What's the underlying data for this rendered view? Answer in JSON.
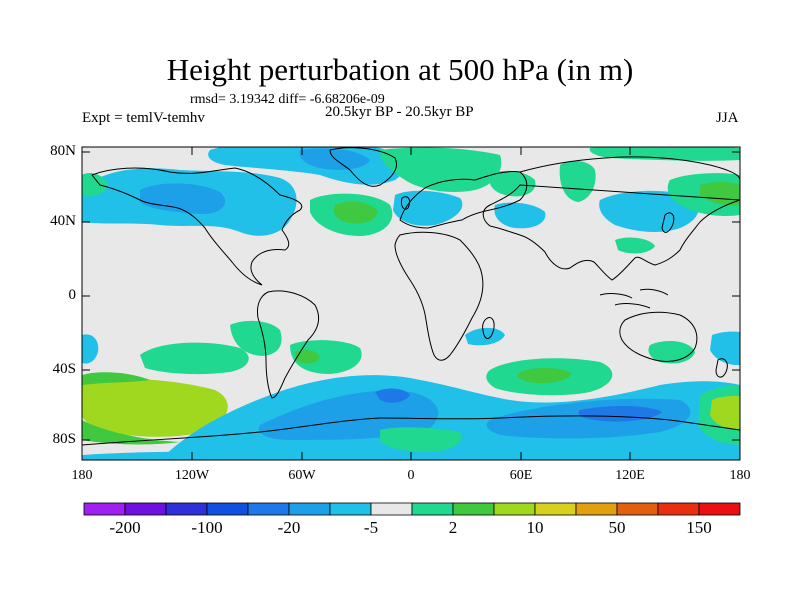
{
  "title": "Height perturbation at 500 hPa (in m)",
  "stats_line": "rmsd= 3.19342 diff= -6.68206e-09",
  "experiment_label": "Expt = temlV-temhv",
  "period_label": "20.5kyr BP - 20.5kyr BP",
  "season_label": "JJA",
  "lat_labels": [
    "80N",
    "40N",
    "0",
    "40S",
    "80S"
  ],
  "lon_labels": [
    "180",
    "120W",
    "60W",
    "0",
    "60E",
    "120E",
    "180"
  ],
  "colorbar": {
    "colors": [
      "#a020f0",
      "#7010e0",
      "#3030d8",
      "#1050e0",
      "#1f78e8",
      "#1ea0e8",
      "#20c0e8",
      "#e8e8e8",
      "#20d890",
      "#40c840",
      "#a0d820",
      "#d8d020",
      "#e0a010",
      "#e06010",
      "#e83010",
      "#e81010"
    ],
    "labels": [
      "-200",
      "-100",
      "-20",
      "-5",
      "2",
      "10",
      "50",
      "150"
    ]
  }
}
